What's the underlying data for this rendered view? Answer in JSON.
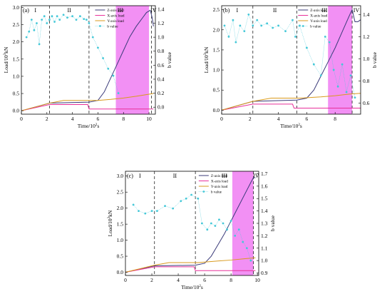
{
  "chart_data": [
    {
      "panel": "(a)",
      "type": "line",
      "xlabel": "Time/10^2s",
      "ylabel_left": "Load/10^3kN",
      "ylabel_right": "b value",
      "xlim": [
        0,
        10.5
      ],
      "ylim_left": [
        -0.1,
        3.05
      ],
      "ylim_right": [
        -0.1,
        1.45
      ],
      "xticks": [
        "0",
        "2",
        "4",
        "6",
        "8",
        "10"
      ],
      "yticks_left": [
        "0.0",
        "0.5",
        "1.0",
        "1.5",
        "2.0",
        "2.5",
        "3.0"
      ],
      "yticks_right": [
        "0.0",
        "0.2",
        "0.4",
        "0.6",
        "0.8",
        "1.0",
        "1.2",
        "1.4"
      ],
      "stage_labels": [
        "I",
        "II",
        "III",
        "IV"
      ],
      "stage_boundaries": [
        2.2,
        5.3,
        10.2
      ],
      "highlight": [
        7.4,
        10.0
      ],
      "series": [
        {
          "name": "Z-axis load",
          "color": "#3b3b7a",
          "x": [
            0,
            2.2,
            5.3,
            6.0,
            6.5,
            7.0,
            7.5,
            8.0,
            8.5,
            9.0,
            9.5,
            9.8,
            10.1,
            10.25,
            10.35
          ],
          "y": [
            0,
            0.22,
            0.25,
            0.3,
            0.55,
            0.95,
            1.35,
            1.75,
            2.15,
            2.45,
            2.7,
            2.85,
            2.92,
            2.7,
            2.45
          ]
        },
        {
          "name": "X-axis load",
          "color": "#e8309a",
          "x": [
            0,
            2.2,
            5.2,
            5.3,
            10.35
          ],
          "y": [
            0,
            0.18,
            0.18,
            0.05,
            0.05
          ]
        },
        {
          "name": "Y-axis load",
          "color": "#d99a1e",
          "x": [
            0,
            2.2,
            3.3,
            5.5,
            6.0,
            7.0,
            8.0,
            9.0,
            10.0,
            10.35
          ],
          "y": [
            0,
            0.22,
            0.3,
            0.3,
            0.3,
            0.33,
            0.37,
            0.42,
            0.48,
            0.5
          ]
        },
        {
          "name": "b value",
          "axis": "right",
          "color": "#44c8d8",
          "x": [
            0.4,
            0.6,
            0.8,
            1.0,
            1.2,
            1.4,
            1.6,
            1.8,
            2.0,
            2.2,
            2.4,
            2.6,
            2.8,
            3.0,
            3.3,
            3.6,
            4.0,
            4.3,
            4.6,
            4.9,
            5.1,
            5.3,
            5.6,
            6.0,
            6.4,
            6.8,
            7.2,
            7.6
          ],
          "y": [
            1.0,
            1.08,
            1.25,
            1.1,
            1.2,
            0.9,
            1.25,
            1.3,
            1.2,
            1.25,
            1.3,
            1.22,
            1.3,
            1.25,
            1.32,
            1.28,
            1.3,
            1.25,
            1.3,
            1.26,
            1.25,
            1.2,
            1.0,
            0.85,
            0.7,
            0.55,
            0.45,
            0.2
          ]
        }
      ]
    },
    {
      "panel": "(b)",
      "type": "line",
      "xlabel": "Time/10^2s",
      "ylabel_left": "Load/10^3kN",
      "ylabel_right": "b value",
      "xlim": [
        0,
        9.8
      ],
      "ylim_left": [
        -0.1,
        2.6
      ],
      "ylim_right": [
        0.5,
        1.48
      ],
      "xticks": [
        "0",
        "2",
        "4",
        "6",
        "8"
      ],
      "yticks_left": [
        "0.0",
        "0.5",
        "1.0",
        "1.5",
        "2.0",
        "2.5"
      ],
      "yticks_right": [
        "0.6",
        "0.8",
        "1.0",
        "1.2",
        "1.4"
      ],
      "stage_labels": [
        "I",
        "II",
        "III",
        "IV"
      ],
      "stage_boundaries": [
        2.2,
        5.3,
        9.2
      ],
      "highlight": [
        7.5,
        9.2
      ],
      "series": [
        {
          "name": "Z-axis load",
          "color": "#3b3b7a",
          "x": [
            0,
            2.2,
            5.3,
            6.0,
            6.5,
            7.0,
            7.5,
            8.0,
            8.5,
            9.0,
            9.2,
            9.4,
            9.6,
            9.8
          ],
          "y": [
            0,
            0.22,
            0.25,
            0.3,
            0.5,
            0.85,
            1.2,
            1.55,
            1.95,
            2.35,
            2.5,
            2.2,
            2.2,
            2.25
          ]
        },
        {
          "name": "X-axis load",
          "color": "#e8309a",
          "x": [
            0,
            2.2,
            5.0,
            5.1,
            9.8
          ],
          "y": [
            0,
            0.15,
            0.15,
            0.05,
            0.05
          ]
        },
        {
          "name": "Y-axis load",
          "color": "#d99a1e",
          "x": [
            0,
            2.2,
            3.5,
            5.5,
            7.0,
            8.0,
            9.0,
            9.8
          ],
          "y": [
            0,
            0.22,
            0.3,
            0.3,
            0.33,
            0.36,
            0.4,
            0.42
          ]
        },
        {
          "name": "b value",
          "axis": "right",
          "color": "#44c8d8",
          "x": [
            0.2,
            0.5,
            0.8,
            1.0,
            1.3,
            1.6,
            1.9,
            2.2,
            2.5,
            2.8,
            3.2,
            3.6,
            4.0,
            4.5,
            5.0,
            5.2,
            5.5,
            6.0,
            6.5,
            7.0,
            7.3,
            7.6,
            7.9,
            8.2,
            8.5,
            8.8,
            9.1,
            9.4
          ],
          "y": [
            1.3,
            1.2,
            1.35,
            1.15,
            1.3,
            1.25,
            1.4,
            1.3,
            1.35,
            1.3,
            1.32,
            1.28,
            1.3,
            1.25,
            1.35,
            1.2,
            1.3,
            1.1,
            0.95,
            0.85,
            1.2,
            1.15,
            0.9,
            0.75,
            0.95,
            0.7,
            0.85,
            0.65
          ]
        }
      ]
    },
    {
      "panel": "(c)",
      "type": "line",
      "xlabel": "Time/10^2s",
      "ylabel_left": "Load/10^3kN",
      "ylabel_right": "b value",
      "xlim": [
        0,
        10.1
      ],
      "ylim_left": [
        -0.1,
        3.15
      ],
      "ylim_right": [
        0.88,
        1.72
      ],
      "xticks": [
        "0",
        "2",
        "4",
        "6",
        "8",
        "10"
      ],
      "yticks_left": [
        "0.0",
        "0.5",
        "1.0",
        "1.5",
        "2.0",
        "2.5",
        "3.0"
      ],
      "yticks_right": [
        "0.9",
        "1.0",
        "1.1",
        "1.2",
        "1.3",
        "1.4",
        "1.5",
        "1.6",
        "1.7"
      ],
      "stage_labels": [
        "I",
        "II",
        "III",
        "IV"
      ],
      "stage_boundaries": [
        2.2,
        5.3,
        9.7
      ],
      "highlight": [
        8.1,
        9.7
      ],
      "series": [
        {
          "name": "Z-axis load",
          "color": "#3b3b7a",
          "x": [
            0,
            2.2,
            5.3,
            6.0,
            6.5,
            7.0,
            7.5,
            8.0,
            8.5,
            9.0,
            9.5,
            9.7,
            9.85
          ],
          "y": [
            0,
            0.2,
            0.22,
            0.28,
            0.5,
            0.85,
            1.2,
            1.6,
            2.0,
            2.4,
            2.8,
            2.95,
            2.95
          ]
        },
        {
          "name": "X-axis load",
          "color": "#e8309a",
          "x": [
            0,
            2.2,
            5.2,
            5.3,
            9.85
          ],
          "y": [
            0,
            0.17,
            0.17,
            0.05,
            0.05
          ]
        },
        {
          "name": "Y-axis load",
          "color": "#d99a1e",
          "x": [
            0,
            2.2,
            3.3,
            5.5,
            7.0,
            8.0,
            9.0,
            9.85
          ],
          "y": [
            0,
            0.22,
            0.3,
            0.3,
            0.35,
            0.38,
            0.42,
            0.45
          ]
        },
        {
          "name": "b value",
          "axis": "right",
          "color": "#44c8d8",
          "x": [
            0.6,
            1.0,
            1.5,
            2.0,
            2.4,
            3.0,
            3.6,
            4.2,
            4.6,
            5.0,
            5.5,
            5.8,
            6.2,
            6.5,
            6.8,
            7.1,
            7.4,
            7.7,
            8.0,
            8.3,
            8.6,
            8.9,
            9.2,
            9.5
          ],
          "y": [
            1.45,
            1.4,
            1.38,
            1.4,
            1.4,
            1.44,
            1.42,
            1.48,
            1.5,
            1.53,
            1.5,
            1.3,
            1.25,
            1.3,
            1.28,
            1.33,
            1.3,
            1.25,
            1.32,
            1.2,
            1.25,
            1.15,
            1.1,
            1.0
          ]
        }
      ]
    }
  ]
}
